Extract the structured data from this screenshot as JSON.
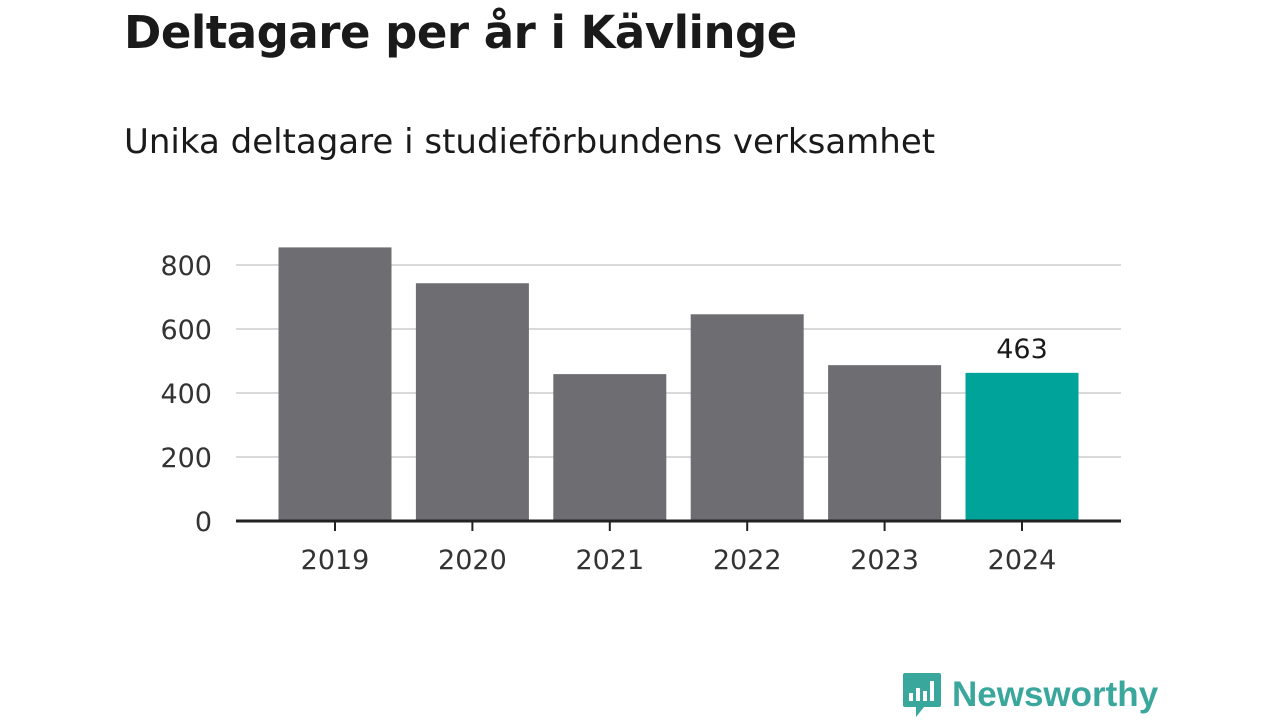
{
  "header": {
    "title": "Deltagare per år i Kävlinge",
    "subtitle": "Unika deltagare i studieförbundens verksamhet"
  },
  "brand": {
    "name": "Newsworthy",
    "icon": "newsworthy-logo-icon",
    "color": "#3aa79c"
  },
  "colors": {
    "bar": "#6e6d72",
    "highlight": "#00a39a",
    "grid": "#d9d9d9",
    "axis": "#222222"
  },
  "chart_data": {
    "type": "bar",
    "title": "Deltagare per år i Kävlinge",
    "subtitle": "Unika deltagare i studieförbundens verksamhet",
    "xlabel": "",
    "ylabel": "",
    "categories": [
      "2019",
      "2020",
      "2021",
      "2022",
      "2023",
      "2024"
    ],
    "values": [
      855,
      743,
      459,
      646,
      487,
      463
    ],
    "ylim": [
      0,
      800
    ],
    "yticks": [
      0,
      200,
      400,
      600,
      800
    ],
    "grid": true,
    "highlight_index": 5,
    "data_labels": [
      {
        "category": "2024",
        "text": "463"
      }
    ]
  }
}
